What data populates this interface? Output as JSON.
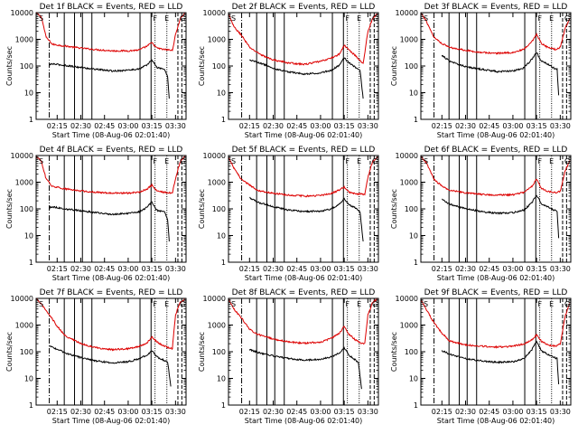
{
  "figure_caption": "",
  "colors": {
    "events": "#000000",
    "lld": "#dd0000",
    "axes": "#000000",
    "background": "#ffffff"
  },
  "chart_data": [
    {
      "type": "line",
      "title": "Det 1f BLACK = Events, RED = LLD",
      "xlabel": "Start Time (08-Aug-06 02:01:40)",
      "ylabel": "Counts/sec",
      "xlim": [
        "02:01:40",
        "03:36:40"
      ],
      "ylim": [
        1,
        10000
      ],
      "yscale": "log",
      "xticks": [
        "02:15",
        "02:30",
        "02:45",
        "03:00",
        "03:15",
        "03:30"
      ],
      "yticks": [
        "1",
        "10",
        "100",
        "1000",
        "10000"
      ],
      "grid": false,
      "legend": "none (colors explained in title)",
      "corner_labels": [
        "S",
        "F",
        "E",
        "G"
      ],
      "series": [
        {
          "color": "red",
          "x": [
            "02:01:40",
            "02:05",
            "02:08",
            "02:12",
            "02:20",
            "02:30",
            "02:40",
            "02:50",
            "03:00",
            "03:07",
            "03:12",
            "03:15",
            "03:18",
            "03:22",
            "03:26",
            "03:28",
            "03:30",
            "03:33",
            "03:36"
          ],
          "values": [
            9800,
            7000,
            1200,
            650,
            560,
            470,
            410,
            370,
            370,
            400,
            560,
            750,
            480,
            420,
            400,
            380,
            1500,
            6000,
            9800
          ]
        },
        {
          "color": "black",
          "x": [
            "02:10",
            "02:12",
            "02:20",
            "02:30",
            "02:40",
            "02:50",
            "03:00",
            "03:07",
            "03:12",
            "03:15",
            "03:18",
            "03:21",
            "03:23",
            "03:25",
            "03:26"
          ],
          "values": [
            110,
            120,
            105,
            88,
            75,
            65,
            70,
            78,
            110,
            170,
            90,
            80,
            75,
            40,
            6
          ]
        }
      ]
    },
    {
      "type": "line",
      "title": "Det 2f BLACK = Events, RED = LLD",
      "xlabel": "Start Time (08-Aug-06 02:01:40)",
      "ylabel": "Counts/sec",
      "xlim": [
        "02:01:40",
        "03:36:40"
      ],
      "ylim": [
        1,
        10000
      ],
      "yscale": "log",
      "xticks": [
        "02:15",
        "02:30",
        "02:45",
        "03:00",
        "03:15",
        "03:30"
      ],
      "yticks": [
        "1",
        "10",
        "100",
        "1000",
        "10000"
      ],
      "grid": false,
      "legend": "none (colors explained in title)",
      "corner_labels": [
        "S",
        "F",
        "E",
        "G"
      ],
      "series": [
        {
          "color": "red",
          "x": [
            "02:01:40",
            "02:05",
            "02:10",
            "02:15",
            "02:20",
            "02:25",
            "02:30",
            "02:40",
            "02:50",
            "03:00",
            "03:07",
            "03:12",
            "03:15",
            "03:18",
            "03:22",
            "03:25",
            "03:27",
            "03:30",
            "03:33",
            "03:36"
          ],
          "values": [
            9000,
            3000,
            1400,
            500,
            320,
            220,
            170,
            130,
            115,
            150,
            200,
            280,
            600,
            400,
            250,
            160,
            120,
            2000,
            6000,
            9000
          ]
        },
        {
          "color": "black",
          "x": [
            "02:15",
            "02:20",
            "02:25",
            "02:30",
            "02:40",
            "02:50",
            "03:00",
            "03:07",
            "03:12",
            "03:15",
            "03:18",
            "03:22",
            "03:25",
            "03:27"
          ],
          "values": [
            170,
            140,
            110,
            80,
            60,
            50,
            55,
            70,
            110,
            200,
            130,
            90,
            70,
            6
          ]
        }
      ]
    },
    {
      "type": "line",
      "title": "Det 3f BLACK = Events, RED = LLD",
      "xlabel": "Start Time (08-Aug-06 02:01:40)",
      "ylabel": "Counts/sec",
      "xlim": [
        "02:01:40",
        "03:36:40"
      ],
      "ylim": [
        1,
        10000
      ],
      "yscale": "log",
      "xticks": [
        "02:15",
        "02:30",
        "02:45",
        "03:00",
        "03:15",
        "03:30"
      ],
      "yticks": [
        "1",
        "10",
        "100",
        "1000",
        "10000"
      ],
      "grid": false,
      "legend": "none (colors explained in title)",
      "corner_labels": [
        "S",
        "F",
        "E",
        "G"
      ],
      "series": [
        {
          "color": "red",
          "x": [
            "02:01:40",
            "02:05",
            "02:10",
            "02:15",
            "02:20",
            "02:30",
            "02:40",
            "02:50",
            "03:00",
            "03:07",
            "03:12",
            "03:15",
            "03:18",
            "03:22",
            "03:27",
            "03:30",
            "03:33",
            "03:36"
          ],
          "values": [
            9500,
            5000,
            1200,
            700,
            500,
            390,
            320,
            300,
            320,
            420,
            800,
            1500,
            700,
            500,
            420,
            500,
            2500,
            6000
          ]
        },
        {
          "color": "black",
          "x": [
            "02:15",
            "02:20",
            "02:30",
            "02:40",
            "02:50",
            "03:00",
            "03:07",
            "03:12",
            "03:15",
            "03:18",
            "03:22",
            "03:25",
            "03:28",
            "03:29"
          ],
          "values": [
            250,
            150,
            95,
            75,
            62,
            65,
            85,
            180,
            320,
            150,
            120,
            90,
            75,
            8
          ]
        }
      ]
    },
    {
      "type": "line",
      "title": "Det 4f BLACK = Events, RED = LLD",
      "xlabel": "Start Time (08-Aug-06 02:01:40)",
      "ylabel": "Counts/sec",
      "xlim": [
        "02:01:40",
        "03:36:40"
      ],
      "ylim": [
        1,
        10000
      ],
      "yscale": "log",
      "xticks": [
        "02:15",
        "02:30",
        "02:45",
        "03:00",
        "03:15",
        "03:30"
      ],
      "yticks": [
        "1",
        "10",
        "100",
        "1000",
        "10000"
      ],
      "grid": false,
      "legend": "none (colors explained in title)",
      "corner_labels": [
        "S",
        "F",
        "E",
        "G"
      ],
      "series": [
        {
          "color": "red",
          "x": [
            "02:01:40",
            "02:05",
            "02:08",
            "02:12",
            "02:20",
            "02:30",
            "02:40",
            "02:50",
            "03:00",
            "03:07",
            "03:12",
            "03:15",
            "03:18",
            "03:22",
            "03:26",
            "03:28",
            "03:30",
            "03:33",
            "03:36"
          ],
          "values": [
            9500,
            6000,
            1300,
            700,
            560,
            470,
            420,
            390,
            390,
            420,
            560,
            780,
            480,
            420,
            400,
            380,
            1400,
            6000,
            9500
          ]
        },
        {
          "color": "black",
          "x": [
            "02:10",
            "02:12",
            "02:20",
            "02:30",
            "02:40",
            "02:50",
            "03:00",
            "03:07",
            "03:12",
            "03:15",
            "03:18",
            "03:21",
            "03:23",
            "03:25",
            "03:26"
          ],
          "values": [
            110,
            120,
            100,
            85,
            72,
            62,
            68,
            78,
            115,
            180,
            90,
            80,
            75,
            40,
            6
          ]
        }
      ]
    },
    {
      "type": "line",
      "title": "Det 5f BLACK = Events, RED = LLD",
      "xlabel": "Start Time (08-Aug-06 02:01:40)",
      "ylabel": "Counts/sec",
      "xlim": [
        "02:01:40",
        "03:36:40"
      ],
      "ylim": [
        1,
        10000
      ],
      "yscale": "log",
      "xticks": [
        "02:15",
        "02:30",
        "02:45",
        "03:00",
        "03:15",
        "03:30"
      ],
      "yticks": [
        "1",
        "10",
        "100",
        "1000",
        "10000"
      ],
      "grid": false,
      "legend": "none (colors explained in title)",
      "corner_labels": [
        "S",
        "F",
        "E",
        "G"
      ],
      "series": [
        {
          "color": "red",
          "x": [
            "02:01:40",
            "02:05",
            "02:10",
            "02:15",
            "02:20",
            "02:30",
            "02:40",
            "02:50",
            "03:00",
            "03:07",
            "03:12",
            "03:15",
            "03:18",
            "03:22",
            "03:26",
            "03:28",
            "03:30",
            "03:33",
            "03:36"
          ],
          "values": [
            9000,
            3500,
            1200,
            800,
            500,
            380,
            330,
            300,
            320,
            380,
            520,
            650,
            420,
            380,
            360,
            350,
            1500,
            6000,
            9000
          ]
        },
        {
          "color": "black",
          "x": [
            "02:15",
            "02:20",
            "02:30",
            "02:40",
            "02:50",
            "03:00",
            "03:07",
            "03:12",
            "03:15",
            "03:18",
            "03:22",
            "03:25",
            "03:27"
          ],
          "values": [
            260,
            180,
            120,
            90,
            80,
            82,
            100,
            150,
            250,
            140,
            110,
            80,
            6
          ]
        }
      ]
    },
    {
      "type": "line",
      "title": "Det 6f BLACK = Events, RED = LLD",
      "xlabel": "Start Time (08-Aug-06 02:01:40)",
      "ylabel": "Counts/sec",
      "xlim": [
        "02:01:40",
        "03:36:40"
      ],
      "ylim": [
        1,
        10000
      ],
      "yscale": "log",
      "xticks": [
        "02:15",
        "02:30",
        "02:45",
        "03:00",
        "03:15",
        "03:30"
      ],
      "yticks": [
        "1",
        "10",
        "100",
        "1000",
        "10000"
      ],
      "grid": false,
      "legend": "none (colors explained in title)",
      "corner_labels": [
        "S",
        "F",
        "E",
        "G"
      ],
      "series": [
        {
          "color": "red",
          "x": [
            "02:01:40",
            "02:05",
            "02:10",
            "02:15",
            "02:20",
            "02:30",
            "02:40",
            "02:50",
            "03:00",
            "03:07",
            "03:12",
            "03:15",
            "03:18",
            "03:22",
            "03:27",
            "03:30",
            "03:33",
            "03:36"
          ],
          "values": [
            9500,
            5500,
            1300,
            700,
            500,
            400,
            350,
            330,
            340,
            420,
            700,
            1300,
            600,
            450,
            400,
            450,
            2500,
            6500
          ]
        },
        {
          "color": "black",
          "x": [
            "02:15",
            "02:20",
            "02:30",
            "02:40",
            "02:50",
            "03:00",
            "03:07",
            "03:12",
            "03:15",
            "03:18",
            "03:22",
            "03:25",
            "03:28",
            "03:29"
          ],
          "values": [
            230,
            150,
            100,
            80,
            68,
            72,
            90,
            170,
            330,
            160,
            120,
            95,
            80,
            8
          ]
        }
      ]
    },
    {
      "type": "line",
      "title": "Det 7f BLACK = Events, RED = LLD",
      "xlabel": "Start Time (08-Aug-06 02:01:40)",
      "ylabel": "Counts/sec",
      "xlim": [
        "02:01:40",
        "03:36:40"
      ],
      "ylim": [
        1,
        10000
      ],
      "yscale": "log",
      "xticks": [
        "02:15",
        "02:30",
        "02:45",
        "03:00",
        "03:15",
        "03:30"
      ],
      "yticks": [
        "1",
        "10",
        "100",
        "1000",
        "10000"
      ],
      "grid": false,
      "legend": "none (colors explained in title)",
      "corner_labels": [
        "S",
        "F",
        "E",
        "G"
      ],
      "series": [
        {
          "color": "red",
          "x": [
            "02:01:40",
            "02:05",
            "02:10",
            "02:15",
            "02:20",
            "02:30",
            "02:40",
            "02:50",
            "03:00",
            "03:07",
            "03:12",
            "03:15",
            "03:18",
            "03:22",
            "03:26",
            "03:28",
            "03:30",
            "03:33",
            "03:36"
          ],
          "values": [
            9800,
            6000,
            2500,
            900,
            400,
            200,
            140,
            120,
            130,
            160,
            220,
            350,
            240,
            170,
            140,
            130,
            2500,
            7000,
            9800
          ]
        },
        {
          "color": "black",
          "x": [
            "02:10",
            "02:12",
            "02:20",
            "02:30",
            "02:40",
            "02:50",
            "03:00",
            "03:07",
            "03:12",
            "03:15",
            "03:18",
            "03:22",
            "03:25",
            "03:27"
          ],
          "values": [
            160,
            150,
            90,
            60,
            45,
            38,
            42,
            55,
            75,
            110,
            65,
            50,
            40,
            5
          ]
        }
      ]
    },
    {
      "type": "line",
      "title": "Det 8f BLACK = Events, RED = LLD",
      "xlabel": "Start Time (08-Aug-06 02:01:40)",
      "ylabel": "Counts/sec",
      "xlim": [
        "02:01:40",
        "03:36:40"
      ],
      "ylim": [
        1,
        10000
      ],
      "yscale": "log",
      "xticks": [
        "02:15",
        "02:30",
        "02:45",
        "03:00",
        "03:15",
        "03:30"
      ],
      "yticks": [
        "1",
        "10",
        "100",
        "1000",
        "10000"
      ],
      "grid": false,
      "legend": "none (colors explained in title)",
      "corner_labels": [
        "S",
        "F",
        "E",
        "G"
      ],
      "series": [
        {
          "color": "red",
          "x": [
            "02:01:40",
            "02:05",
            "02:10",
            "02:15",
            "02:20",
            "02:30",
            "02:40",
            "02:50",
            "03:00",
            "03:07",
            "03:12",
            "03:15",
            "03:18",
            "03:22",
            "03:25",
            "03:28",
            "03:30",
            "03:33",
            "03:36"
          ],
          "values": [
            9500,
            4000,
            1800,
            700,
            450,
            300,
            230,
            210,
            230,
            320,
            500,
            900,
            450,
            280,
            220,
            200,
            2500,
            7000,
            9500
          ]
        },
        {
          "color": "black",
          "x": [
            "02:15",
            "02:20",
            "02:30",
            "02:40",
            "02:50",
            "03:00",
            "03:07",
            "03:12",
            "03:15",
            "03:18",
            "03:21",
            "03:24",
            "03:26"
          ],
          "values": [
            120,
            95,
            70,
            55,
            48,
            52,
            65,
            90,
            140,
            75,
            55,
            40,
            4
          ]
        }
      ]
    },
    {
      "type": "line",
      "title": "Det 9f BLACK = Events, RED = LLD",
      "xlabel": "Start Time (08-Aug-06 02:01:40)",
      "ylabel": "Counts/sec",
      "xlim": [
        "02:01:40",
        "03:36:40"
      ],
      "ylim": [
        1,
        10000
      ],
      "yscale": "log",
      "xticks": [
        "02:15",
        "02:30",
        "02:45",
        "03:00",
        "03:15",
        "03:30"
      ],
      "yticks": [
        "1",
        "10",
        "100",
        "1000",
        "10000"
      ],
      "grid": false,
      "legend": "none (colors explained in title)",
      "corner_labels": [
        "S",
        "F",
        "E",
        "G"
      ],
      "series": [
        {
          "color": "red",
          "x": [
            "02:01:40",
            "02:05",
            "02:10",
            "02:15",
            "02:20",
            "02:30",
            "02:40",
            "02:50",
            "03:00",
            "03:07",
            "03:12",
            "03:15",
            "03:18",
            "03:22",
            "03:27",
            "03:30",
            "03:33",
            "03:36"
          ],
          "values": [
            9000,
            4000,
            1200,
            500,
            250,
            180,
            160,
            150,
            160,
            200,
            280,
            420,
            250,
            180,
            160,
            200,
            2000,
            6500
          ]
        },
        {
          "color": "black",
          "x": [
            "02:15",
            "02:20",
            "02:30",
            "02:40",
            "02:50",
            "03:00",
            "03:07",
            "03:12",
            "03:15",
            "03:18",
            "03:22",
            "03:25",
            "03:28",
            "03:29"
          ],
          "values": [
            110,
            80,
            55,
            45,
            40,
            42,
            55,
            120,
            250,
            110,
            80,
            65,
            55,
            6
          ]
        }
      ]
    }
  ]
}
